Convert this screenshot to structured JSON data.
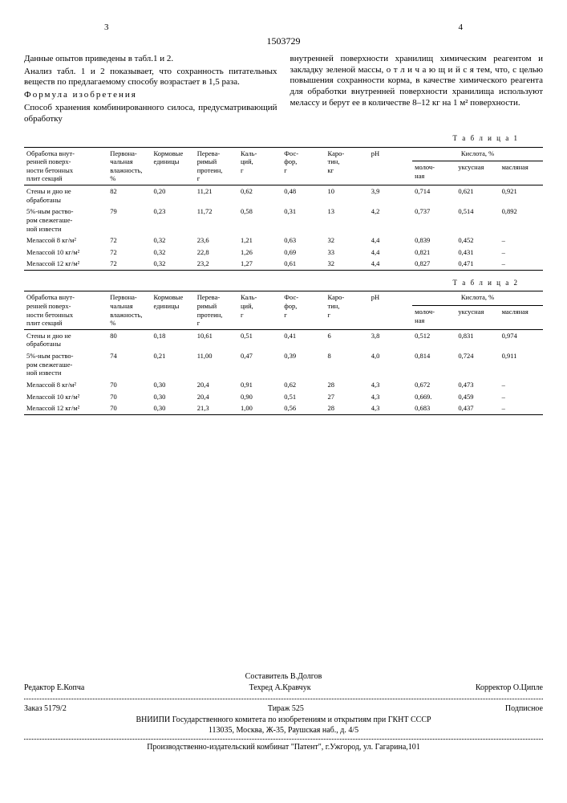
{
  "header": {
    "left_page": "3",
    "right_page": "4",
    "doc_number": "1503729"
  },
  "left_col": {
    "p1": "Данные опытов приведены в табл.1 и 2.",
    "p2": "Анализ табл. 1 и 2 показывает, что сохранность питательных веществ по предлагаемому способу возрастает в 1,5 раза.",
    "p3_spaced": "Формула изобретения",
    "p4": "Способ хранения комбинированного силоса, предусматривающий обработку"
  },
  "right_col": {
    "p1": "внутренней поверхности хранилищ химическим реагентом и закладку зеленой массы, о т л и ч а ю щ и й с я тем, что, с целью повышения сохранности корма, в качестве химического реагента для обработки внутренней поверхности хранилища используют мелассу и берут ее в количестве 8–12 кг на 1 м² поверхности."
  },
  "margin_numbers": {
    "a": "5",
    "b": "10"
  },
  "table1": {
    "caption": "Т а б л и ц а 1",
    "headers": {
      "treatment": "Обработка внут-\nренней поверх-\nности бетонных\nплит секций",
      "moisture": "Первона-\nчальная\nвлажность,\n%",
      "units": "Кормовые\nединицы",
      "protein": "Перева-\nримый\nпротеин,\nг",
      "ca": "Каль-\nций,\nг",
      "p": "Фос-\nфор,\nг",
      "carotene": "Каро-\nтин,\nкг",
      "ph": "pH",
      "acid_group": "Кислота, %",
      "lactic": "молоч-\nная",
      "acetic": "уксусная",
      "butyric": "масляная"
    },
    "rows": [
      {
        "t": "Стены и дно не обработаны",
        "m": "82",
        "u": "0,20",
        "pr": "11,21",
        "ca": "0,62",
        "p": "0,48",
        "car": "10",
        "ph": "3,9",
        "la": "0,714",
        "ac": "0,621",
        "bu": "0,921"
      },
      {
        "t": "5%-ным раство-\nром свежегаше-\nной извести",
        "m": "79",
        "u": "0,23",
        "pr": "11,72",
        "ca": "0,58",
        "p": "0,31",
        "car": "13",
        "ph": "4,2",
        "la": "0,737",
        "ac": "0,514",
        "bu": "0,892"
      },
      {
        "t": "Мелассой 8 кг/м²",
        "m": "72",
        "u": "0,32",
        "pr": "23,6",
        "ca": "1,21",
        "p": "0,63",
        "car": "32",
        "ph": "4,4",
        "la": "0,839",
        "ac": "0,452",
        "bu": "–"
      },
      {
        "t": "Мелассой 10 кг/м²",
        "m": "72",
        "u": "0,32",
        "pr": "22,8",
        "ca": "1,26",
        "p": "0,69",
        "car": "33",
        "ph": "4,4",
        "la": "0,821",
        "ac": "0,431",
        "bu": "–"
      },
      {
        "t": "Мелассой 12 кг/м²",
        "m": "72",
        "u": "0,32",
        "pr": "23,2",
        "ca": "1,27",
        "p": "0,61",
        "car": "32",
        "ph": "4,4",
        "la": "0,827",
        "ac": "0,471",
        "bu": "–"
      }
    ]
  },
  "table2": {
    "caption": "Т а б л и ц а 2",
    "headers": {
      "treatment": "Обработка внут-\nренней поверх-\nности бетонных\nплит секций",
      "moisture": "Первона-\nчальная\nвлажность,\n%",
      "units": "Кормовые\nединицы",
      "protein": "Перева-\nримый\nпротеин,\nг",
      "ca": "Каль-\nций,\nг",
      "p": "Фос-\nфор,\nг",
      "carotene": "Каро-\nтин,\nг",
      "ph": "pH",
      "acid_group": "Кислота, %",
      "lactic": "молоч-\nная",
      "acetic": "уксусная",
      "butyric": "масляная"
    },
    "rows": [
      {
        "t": "Стены и дно не обработаны",
        "m": "80",
        "u": "0,18",
        "pr": "10,61",
        "ca": "0,51",
        "p": "0,41",
        "car": "6",
        "ph": "3,8",
        "la": "0,512",
        "ac": "0,831",
        "bu": "0,974"
      },
      {
        "t": "5%-ным раство-\nром свежегаше-\nной извести",
        "m": "74",
        "u": "0,21",
        "pr": "11,00",
        "ca": "0,47",
        "p": "0,39",
        "car": "8",
        "ph": "4,0",
        "la": "0,814",
        "ac": "0,724",
        "bu": "0,911"
      },
      {
        "t": "Мелассой 8 кг/м²",
        "m": "70",
        "u": "0,30",
        "pr": "20,4",
        "ca": "0,91",
        "p": "0,62",
        "car": "28",
        "ph": "4,3",
        "la": "0,672",
        "ac": "0,473",
        "bu": "–"
      },
      {
        "t": "Мелассой 10 кг/м²",
        "m": "70",
        "u": "0,30",
        "pr": "20,4",
        "ca": "0,90",
        "p": "0,51",
        "car": "27",
        "ph": "4,3",
        "la": "0,669.",
        "ac": "0,459",
        "bu": "–"
      },
      {
        "t": "Мелассой 12 кг/м²",
        "m": "70",
        "u": "0,30",
        "pr": "21,3",
        "ca": "1,00",
        "p": "0,56",
        "car": "28",
        "ph": "4,3",
        "la": "0,683",
        "ac": "0,437",
        "bu": "–"
      }
    ]
  },
  "footer": {
    "compiler": "Составитель В.Долгов",
    "editor": "Редактор Е.Копча",
    "techred": "Техред А.Кравчук",
    "corrector": "Корректор О.Ципле",
    "order": "Заказ 5179/2",
    "tirage": "Тираж 525",
    "subscribed": "Подписное",
    "vniipi": "ВНИИПИ Государственного комитета по изобретениям и открытиям при ГКНТ СССР",
    "addr1": "113035, Москва, Ж-35, Раушская наб., д. 4/5",
    "izdat": "Производственно-издательский комбинат \"Патент\", г.Ужгород, ул. Гагарина,101"
  }
}
